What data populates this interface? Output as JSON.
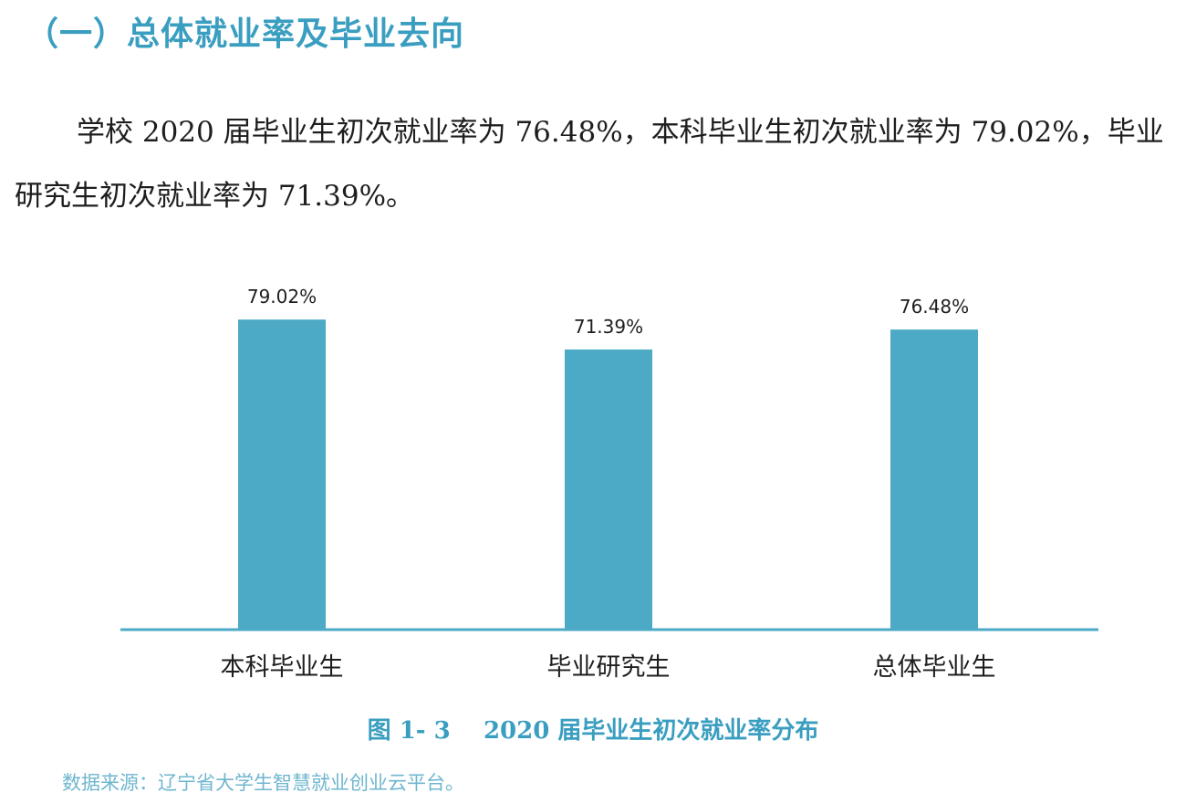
{
  "section": {
    "heading": "（一）总体就业率及毕业去向",
    "paragraph": "学校 2020 届毕业生初次就业率为 76.48%，本科毕业生初次就业率为 79.02%，毕业研究生初次就业率为 71.39%。"
  },
  "colors": {
    "bar": "#4caac6",
    "axis": "#4caac6",
    "heading": "#3a9ec0",
    "caption": "#3a9ec0",
    "source": "#6fb6cf"
  },
  "chart_data": {
    "type": "bar",
    "categories": [
      "本科毕业生",
      "毕业研究生",
      "总体毕业生"
    ],
    "values": [
      79.02,
      71.39,
      76.48
    ],
    "data_labels": [
      "79.02%",
      "71.39%",
      "76.48%"
    ],
    "title": "",
    "xlabel": "",
    "ylabel": "",
    "ylim": [
      0,
      100
    ],
    "grid": false,
    "legend": "none"
  },
  "figure": {
    "number": "图 1- 3",
    "caption": "2020 届毕业生初次就业率分布",
    "source": "数据来源：辽宁省大学生智慧就业创业云平台。"
  }
}
